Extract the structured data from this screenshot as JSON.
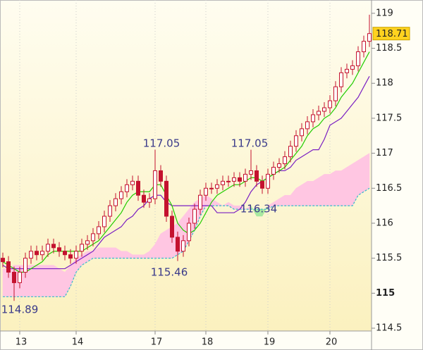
{
  "chart_data": {
    "type": "candlestick",
    "categories": [
      null,
      null,
      null,
      "13",
      null,
      null,
      null,
      null,
      null,
      null,
      null,
      null,
      null,
      "14",
      null,
      null,
      null,
      null,
      null,
      null,
      null,
      null,
      null,
      null,
      null,
      null,
      null,
      "17",
      null,
      null,
      null,
      null,
      null,
      null,
      null,
      null,
      "18",
      null,
      null,
      null,
      null,
      null,
      null,
      null,
      null,
      null,
      null,
      "19",
      null,
      null,
      null,
      null,
      null,
      null,
      null,
      null,
      null,
      null,
      "20",
      null,
      null,
      null,
      null,
      null,
      null,
      null
    ],
    "open": [
      115.5,
      115.45,
      115.3,
      115.15,
      115.3,
      115.5,
      115.6,
      115.55,
      115.6,
      115.7,
      115.65,
      115.6,
      115.55,
      115.5,
      115.6,
      115.7,
      115.75,
      115.85,
      115.95,
      116.1,
      116.25,
      116.35,
      116.45,
      116.55,
      116.6,
      116.4,
      116.3,
      116.35,
      116.75,
      116.6,
      116.1,
      115.8,
      115.6,
      115.75,
      116.0,
      116.2,
      116.4,
      116.5,
      116.5,
      116.55,
      116.6,
      116.6,
      116.65,
      116.6,
      116.7,
      116.75,
      116.6,
      116.5,
      116.7,
      116.8,
      116.85,
      116.95,
      117.1,
      117.25,
      117.35,
      117.45,
      117.55,
      117.6,
      117.65,
      117.75,
      117.95,
      118.15,
      118.2,
      118.25,
      118.45,
      118.6
    ],
    "high": [
      115.58,
      115.53,
      115.38,
      115.38,
      115.58,
      115.68,
      115.68,
      115.68,
      115.78,
      115.78,
      115.73,
      115.68,
      115.63,
      115.68,
      115.78,
      115.83,
      115.93,
      116.03,
      116.18,
      116.33,
      116.43,
      116.53,
      116.63,
      116.68,
      116.68,
      116.48,
      116.43,
      117.05,
      116.83,
      116.68,
      116.18,
      115.88,
      115.83,
      116.08,
      116.28,
      116.48,
      116.58,
      116.58,
      116.63,
      116.68,
      116.68,
      116.73,
      116.73,
      116.78,
      117.05,
      116.83,
      116.68,
      116.78,
      116.88,
      116.93,
      117.03,
      117.18,
      117.33,
      117.43,
      117.53,
      117.63,
      117.68,
      117.73,
      117.83,
      118.03,
      118.23,
      118.28,
      118.33,
      118.53,
      118.68,
      118.98
    ],
    "low": [
      115.37,
      115.22,
      114.89,
      115.07,
      115.22,
      115.42,
      115.47,
      115.47,
      115.52,
      115.57,
      115.52,
      115.47,
      115.42,
      115.42,
      115.52,
      115.62,
      115.67,
      115.77,
      115.87,
      116.02,
      116.17,
      116.27,
      116.37,
      116.47,
      116.32,
      116.22,
      116.22,
      116.27,
      116.52,
      116.02,
      115.72,
      115.46,
      115.52,
      115.67,
      115.92,
      116.12,
      116.32,
      116.42,
      116.42,
      116.47,
      116.52,
      116.52,
      116.52,
      116.52,
      116.62,
      116.52,
      116.42,
      116.42,
      116.62,
      116.72,
      116.77,
      116.87,
      117.02,
      117.17,
      117.27,
      117.37,
      117.47,
      117.52,
      117.57,
      117.67,
      117.87,
      118.07,
      118.12,
      118.17,
      118.37,
      118.52
    ],
    "close": [
      115.45,
      115.3,
      115.15,
      115.3,
      115.5,
      115.6,
      115.55,
      115.6,
      115.7,
      115.65,
      115.6,
      115.55,
      115.5,
      115.6,
      115.7,
      115.75,
      115.85,
      115.95,
      116.1,
      116.25,
      116.35,
      116.45,
      116.55,
      116.6,
      116.4,
      116.3,
      116.35,
      116.75,
      116.6,
      116.1,
      115.8,
      115.6,
      115.75,
      116.0,
      116.2,
      116.4,
      116.5,
      116.5,
      116.55,
      116.6,
      116.6,
      116.65,
      116.6,
      116.7,
      116.75,
      116.6,
      116.5,
      116.7,
      116.8,
      116.85,
      116.95,
      117.1,
      117.25,
      117.35,
      117.45,
      117.55,
      117.6,
      117.65,
      117.75,
      117.95,
      118.15,
      118.2,
      118.25,
      118.45,
      118.6,
      118.71
    ],
    "tenkan": [
      115.45,
      115.4,
      115.35,
      115.3,
      115.3,
      115.35,
      115.4,
      115.45,
      115.55,
      115.6,
      115.6,
      115.6,
      115.6,
      115.6,
      115.6,
      115.65,
      115.7,
      115.75,
      115.85,
      115.95,
      116.05,
      116.15,
      116.3,
      116.4,
      116.45,
      116.45,
      116.45,
      116.55,
      116.55,
      116.4,
      116.25,
      116.0,
      115.9,
      115.85,
      115.9,
      116.0,
      116.15,
      116.3,
      116.4,
      116.45,
      116.5,
      116.55,
      116.55,
      116.6,
      116.65,
      116.65,
      116.6,
      116.65,
      116.7,
      116.75,
      116.8,
      116.9,
      117.0,
      117.1,
      117.25,
      117.35,
      117.4,
      117.5,
      117.55,
      117.65,
      117.8,
      117.9,
      118.0,
      118.15,
      118.3,
      118.45
    ],
    "kijun": [
      115.4,
      115.35,
      115.35,
      115.35,
      115.35,
      115.35,
      115.35,
      115.35,
      115.35,
      115.35,
      115.35,
      115.35,
      115.4,
      115.45,
      115.5,
      115.55,
      115.6,
      115.7,
      115.8,
      115.85,
      115.9,
      115.95,
      116.05,
      116.1,
      116.2,
      116.25,
      116.35,
      116.4,
      116.4,
      116.3,
      116.25,
      116.25,
      116.25,
      116.25,
      116.25,
      116.25,
      116.25,
      116.25,
      116.15,
      116.15,
      116.15,
      116.15,
      116.2,
      116.3,
      116.45,
      116.55,
      116.6,
      116.65,
      116.7,
      116.75,
      116.75,
      116.8,
      116.9,
      116.95,
      117.0,
      117.05,
      117.05,
      117.2,
      117.4,
      117.45,
      117.5,
      117.6,
      117.7,
      117.8,
      117.95,
      118.1
    ],
    "span_a": [
      115.35,
      115.35,
      115.4,
      115.4,
      115.4,
      115.4,
      115.4,
      115.4,
      115.4,
      115.4,
      115.35,
      115.3,
      115.4,
      115.5,
      115.55,
      115.6,
      115.6,
      115.65,
      115.65,
      115.65,
      115.65,
      115.6,
      115.6,
      115.55,
      115.55,
      115.55,
      115.6,
      115.7,
      115.85,
      115.9,
      115.95,
      116.0,
      116.1,
      116.2,
      116.3,
      116.35,
      116.4,
      116.35,
      116.3,
      116.25,
      116.3,
      116.25,
      116.25,
      116.2,
      116.25,
      116.1,
      116.1,
      116.25,
      116.3,
      116.35,
      116.4,
      116.4,
      116.5,
      116.55,
      116.6,
      116.6,
      116.65,
      116.7,
      116.7,
      116.75,
      116.75,
      116.8,
      116.85,
      116.9,
      116.95,
      117.0
    ],
    "span_b": [
      114.95,
      114.95,
      114.95,
      114.95,
      114.95,
      114.95,
      114.95,
      114.95,
      114.95,
      114.95,
      114.95,
      114.95,
      115.1,
      115.3,
      115.4,
      115.45,
      115.5,
      115.5,
      115.5,
      115.5,
      115.5,
      115.5,
      115.5,
      115.5,
      115.5,
      115.5,
      115.5,
      115.5,
      115.5,
      115.5,
      115.5,
      115.55,
      115.6,
      115.75,
      115.9,
      116.1,
      116.25,
      116.25,
      116.25,
      116.25,
      116.25,
      116.2,
      116.2,
      116.2,
      116.2,
      116.2,
      116.2,
      116.2,
      116.25,
      116.25,
      116.25,
      116.25,
      116.25,
      116.25,
      116.25,
      116.25,
      116.25,
      116.25,
      116.25,
      116.25,
      116.25,
      116.25,
      116.25,
      116.4,
      116.45,
      116.5
    ],
    "annotations": [
      "117.05",
      "117.05",
      "115.46",
      "114.89",
      "116.34"
    ],
    "last_price": 118.71,
    "ylim": [
      114.46,
      119.19
    ],
    "yticks": [
      114.5,
      115,
      115.5,
      116,
      116.5,
      117,
      117.5,
      118,
      118.5,
      119
    ],
    "highlight_ytick": 115,
    "candle_color": "#c4122f",
    "tenkan_color": "#22cc00",
    "kijun_color": "#7a1fc2",
    "cloud_up_color": "#ffc6e2",
    "cloud_down_color": "#a8e8a0",
    "span_b_color": "#33bbcc",
    "grid": true
  }
}
